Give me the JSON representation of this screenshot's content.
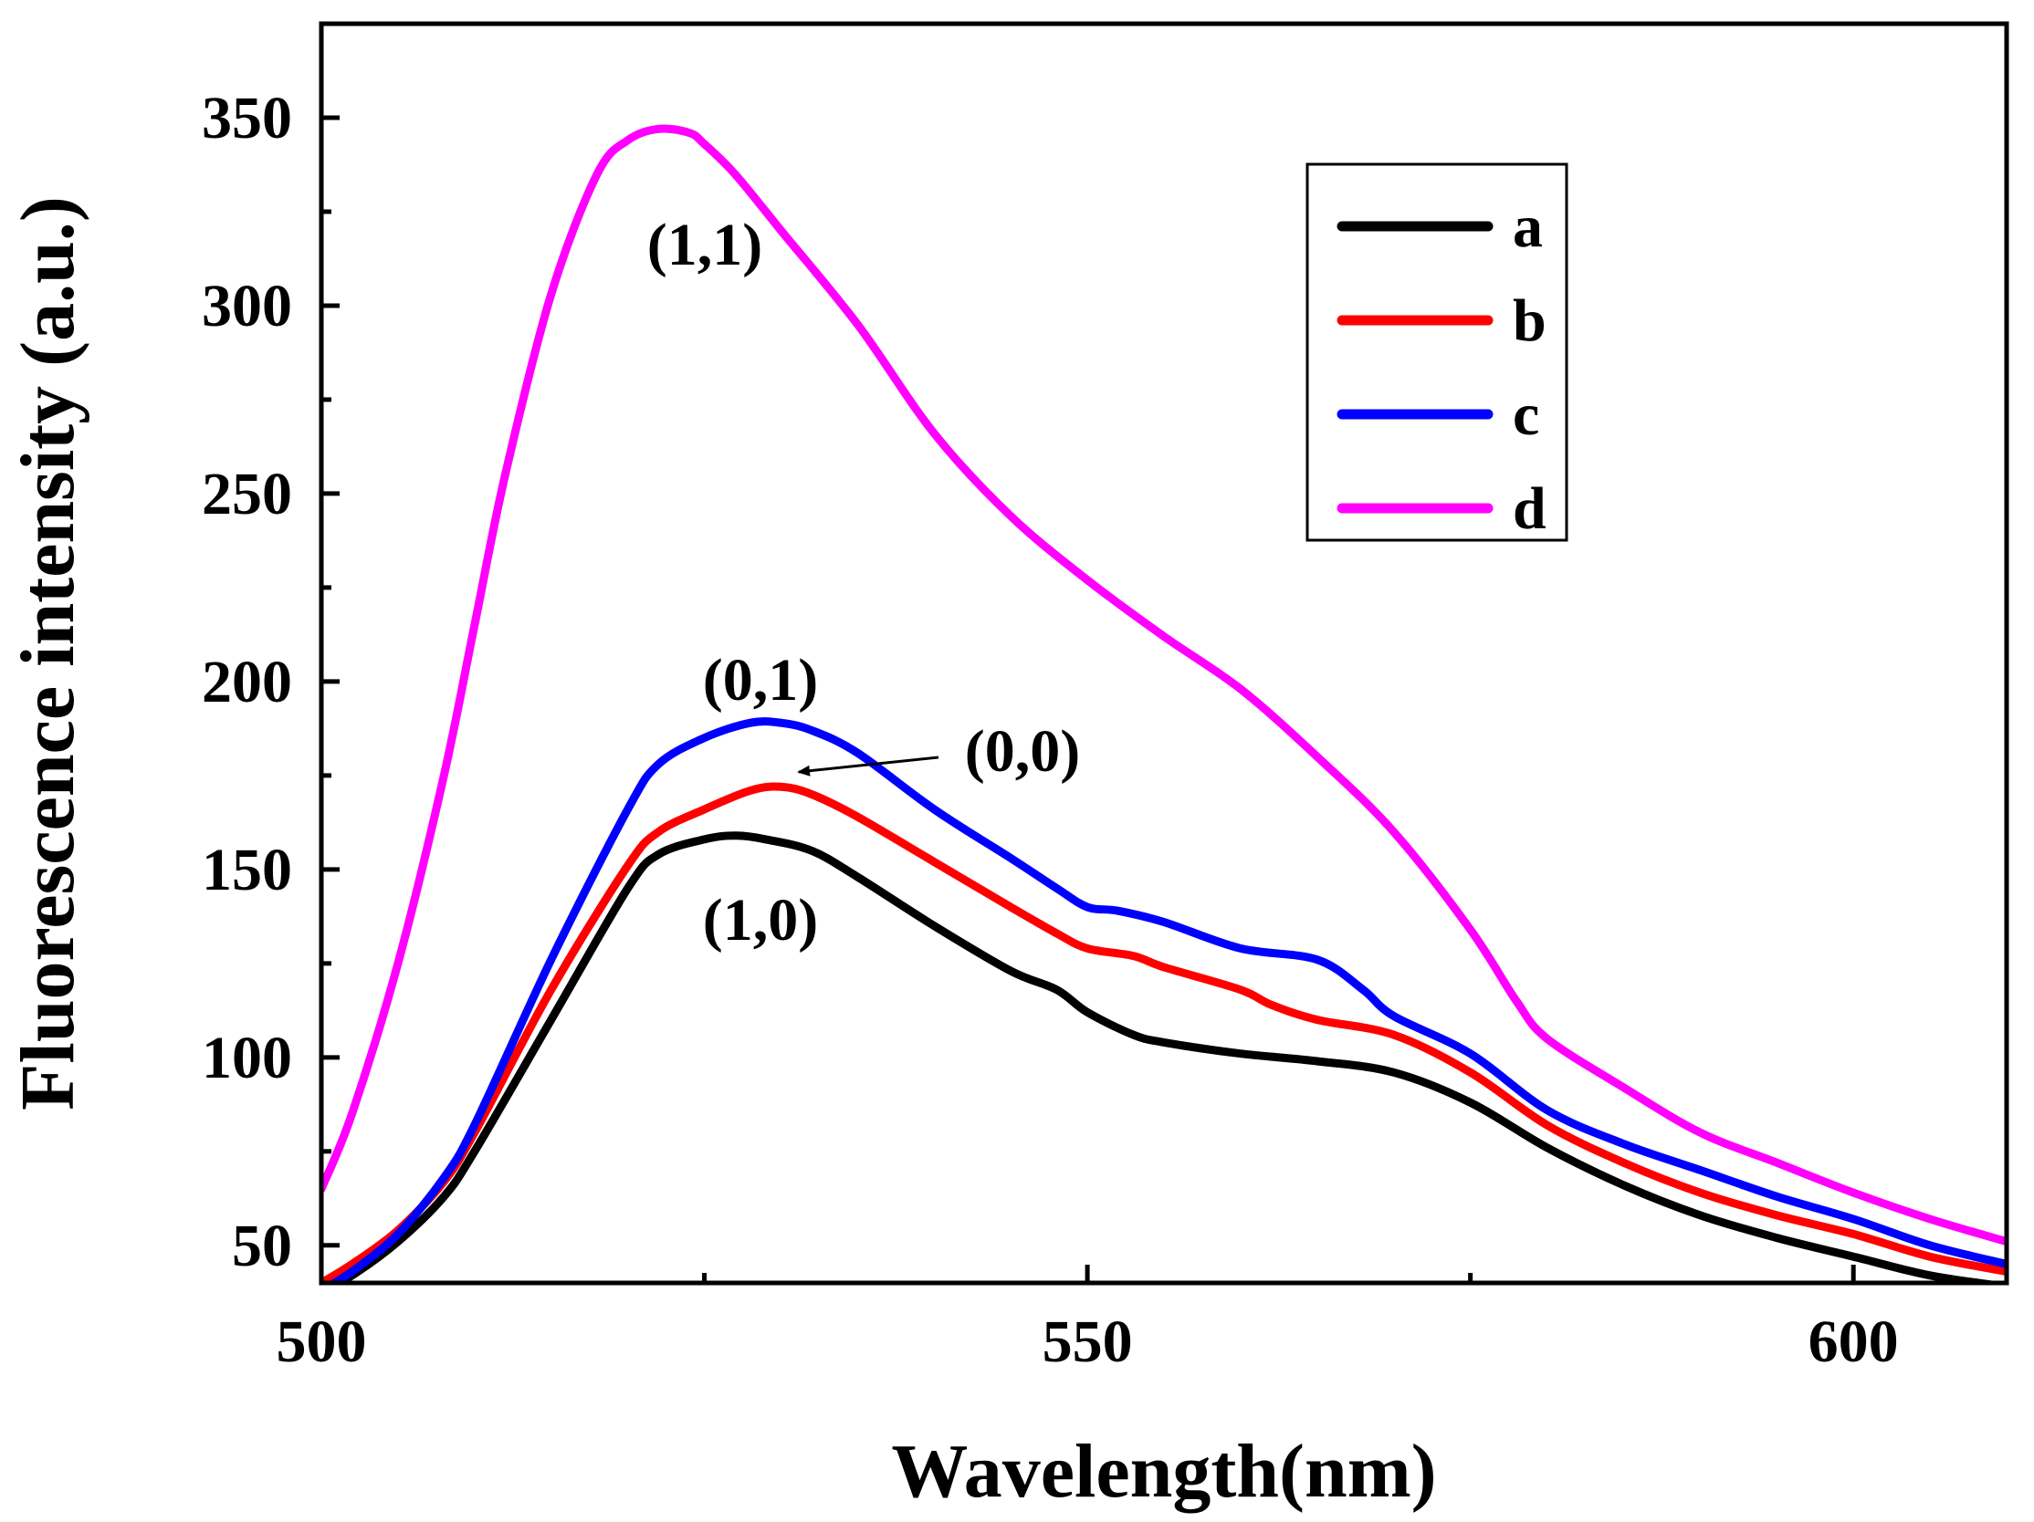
{
  "chart_data": {
    "type": "line",
    "title": "",
    "xlabel": "Wavelength(nm)",
    "ylabel": "Fluorescence intensity (a.u.)",
    "xlim": [
      500,
      610
    ],
    "ylim": [
      40,
      375
    ],
    "x_ticks": [
      500,
      550,
      600
    ],
    "x_minor_ticks": [
      525,
      575
    ],
    "y_ticks": [
      50,
      100,
      150,
      200,
      250,
      300,
      350
    ],
    "y_minor_ticks": [
      75,
      125,
      175,
      225,
      275,
      325,
      375
    ],
    "x_tick_labels": [
      "500",
      "550",
      "600"
    ],
    "y_tick_labels": [
      "50",
      "100",
      "150",
      "200",
      "250",
      "300",
      "350"
    ],
    "legend_position": "top-right",
    "colors": {
      "a": "#000000",
      "b": "#ff0000",
      "c": "#0000ff",
      "d": "#ff00ff"
    },
    "series": [
      {
        "name": "a",
        "color": "#000000",
        "x": [
          500,
          502,
          505,
          508,
          510,
          515,
          520,
          522,
          525,
          527,
          529,
          532,
          535,
          540,
          545,
          548,
          550,
          553,
          555,
          560,
          565,
          570,
          575,
          580,
          585,
          590,
          595,
          600,
          605,
          610
        ],
        "y": [
          38,
          42,
          51,
          63,
          75,
          110,
          145,
          154,
          158,
          159,
          158,
          155,
          148,
          135,
          123,
          118,
          112,
          106,
          104,
          101,
          99,
          96,
          88,
          76,
          66,
          58,
          52,
          47,
          42,
          39
        ]
      },
      {
        "name": "b",
        "color": "#ff0000",
        "x": [
          500,
          502,
          505,
          508,
          510,
          515,
          520,
          522,
          525,
          528,
          530,
          532,
          535,
          540,
          545,
          548,
          550,
          553,
          555,
          560,
          562,
          565,
          570,
          575,
          580,
          585,
          590,
          595,
          600,
          605,
          610
        ],
        "y": [
          40,
          45,
          54,
          67,
          80,
          118,
          151,
          160,
          166,
          171,
          172,
          170,
          164,
          152,
          140,
          133,
          129,
          127,
          124,
          118,
          114,
          110,
          106,
          96,
          82,
          72,
          64,
          58,
          53,
          47,
          43
        ]
      },
      {
        "name": "c",
        "color": "#0000ff",
        "x": [
          500,
          502,
          505,
          508,
          510,
          515,
          520,
          522,
          525,
          528,
          530,
          532,
          535,
          540,
          545,
          548,
          550,
          552,
          555,
          560,
          565,
          568,
          570,
          575,
          580,
          585,
          590,
          595,
          600,
          605,
          610
        ],
        "y": [
          38,
          43,
          53,
          68,
          82,
          126,
          166,
          178,
          185,
          189,
          189,
          187,
          181,
          166,
          153,
          145,
          140,
          139,
          136,
          129,
          126,
          118,
          111,
          101,
          86,
          77,
          70,
          63,
          57,
          50,
          45
        ]
      },
      {
        "name": "d",
        "color": "#ff00ff",
        "x": [
          500,
          502,
          505,
          508,
          510,
          512,
          515,
          518,
          520,
          522,
          524,
          525,
          527,
          530,
          535,
          540,
          545,
          550,
          555,
          560,
          565,
          570,
          575,
          578,
          580,
          585,
          590,
          595,
          600,
          605,
          610
        ],
        "y": [
          65,
          85,
          125,
          175,
          215,
          255,
          303,
          335,
          344,
          347,
          346,
          343,
          335,
          320,
          295,
          266,
          244,
          227,
          212,
          198,
          180,
          160,
          134,
          115,
          105,
          92,
          80,
          72,
          64,
          57,
          51
        ]
      }
    ],
    "annotations": [
      {
        "text": "(1,1)",
        "target_series": "d"
      },
      {
        "text": "(0,1)",
        "target_series": "c"
      },
      {
        "text": "(0,0)",
        "target_series": "b",
        "arrow": true
      },
      {
        "text": "(1,0)",
        "target_series": "a"
      }
    ]
  }
}
